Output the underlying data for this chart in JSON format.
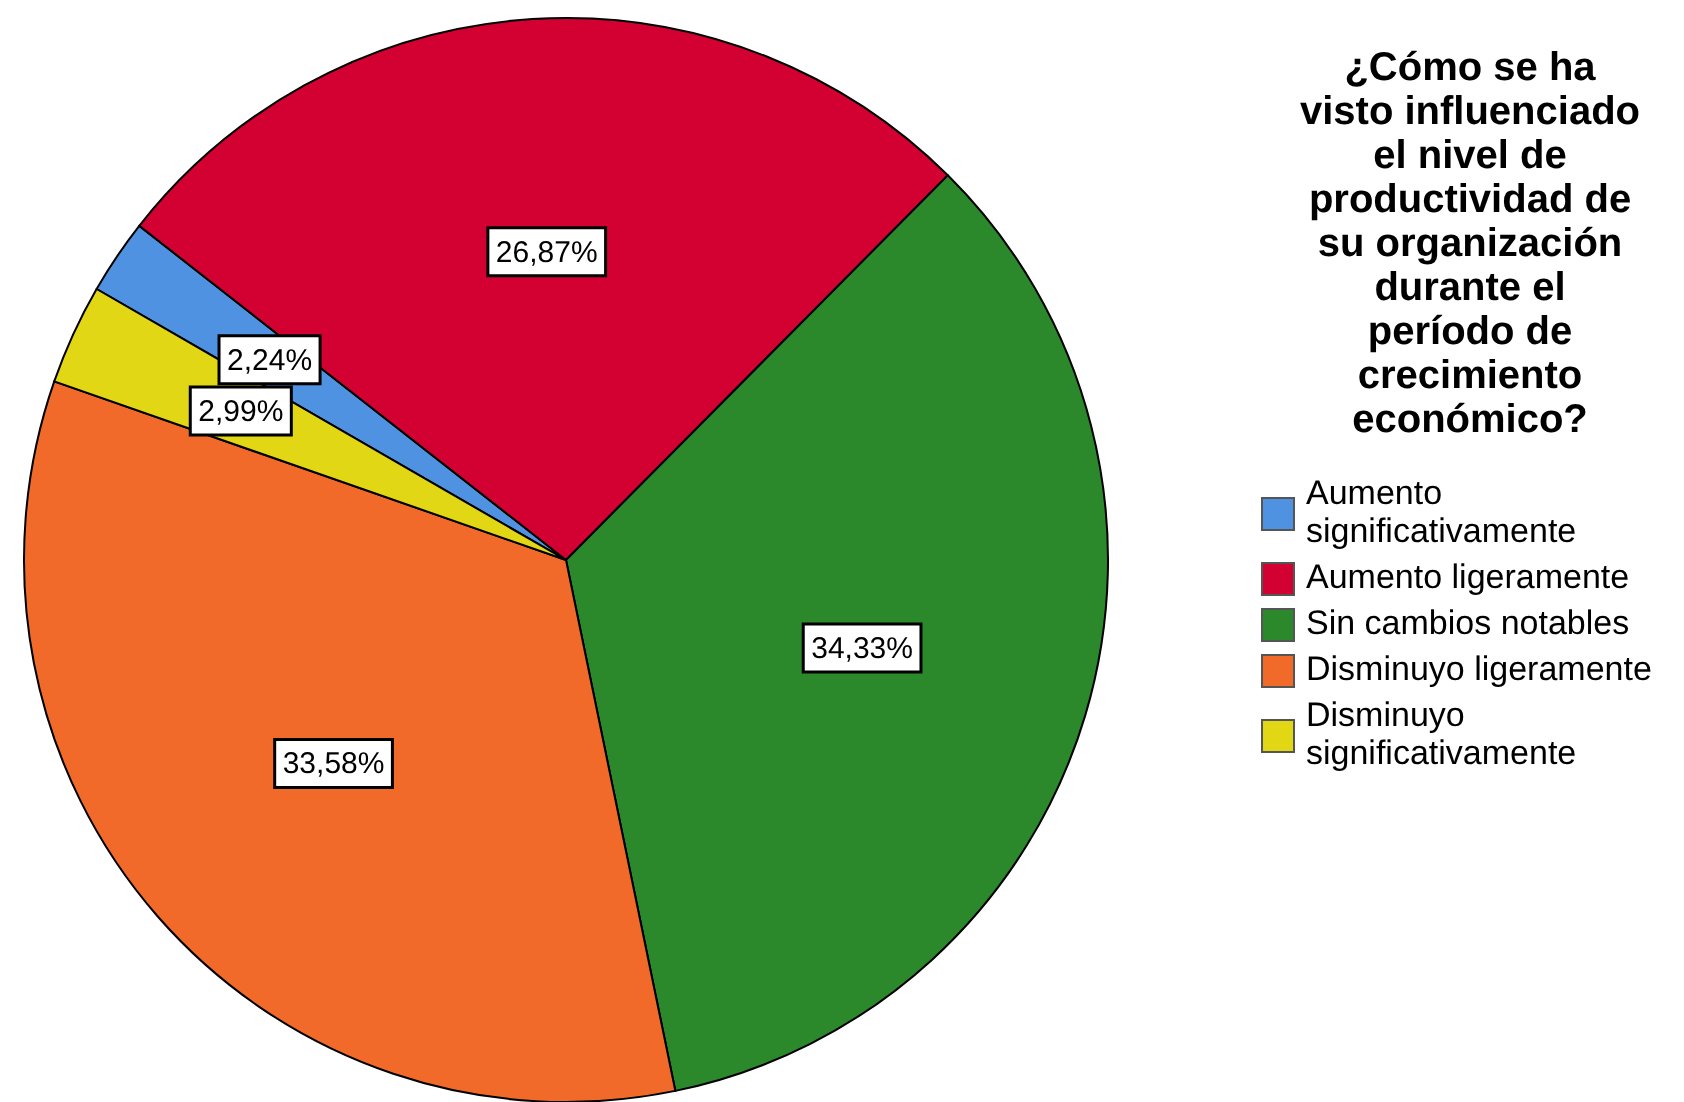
{
  "chart_data": {
    "type": "pie",
    "legend_title": "¿Cómo se ha visto influenciado el nivel de productividad de su organización durante el período de crecimiento económico?",
    "categories": [
      "Aumento significativamente",
      "Aumento ligeramente",
      "Sin cambios notables",
      "Disminuyo ligeramente",
      "Disminuyo significativamente"
    ],
    "values": [
      2.24,
      26.87,
      34.33,
      33.58,
      2.99
    ],
    "colors": [
      "#5092e2",
      "#d30032",
      "#2b882b",
      "#f26a2a",
      "#e2d714"
    ],
    "value_labels": [
      "2,24%",
      "26,87%",
      "34,33%",
      "33,58%",
      "2,99%"
    ],
    "legend": "right"
  }
}
